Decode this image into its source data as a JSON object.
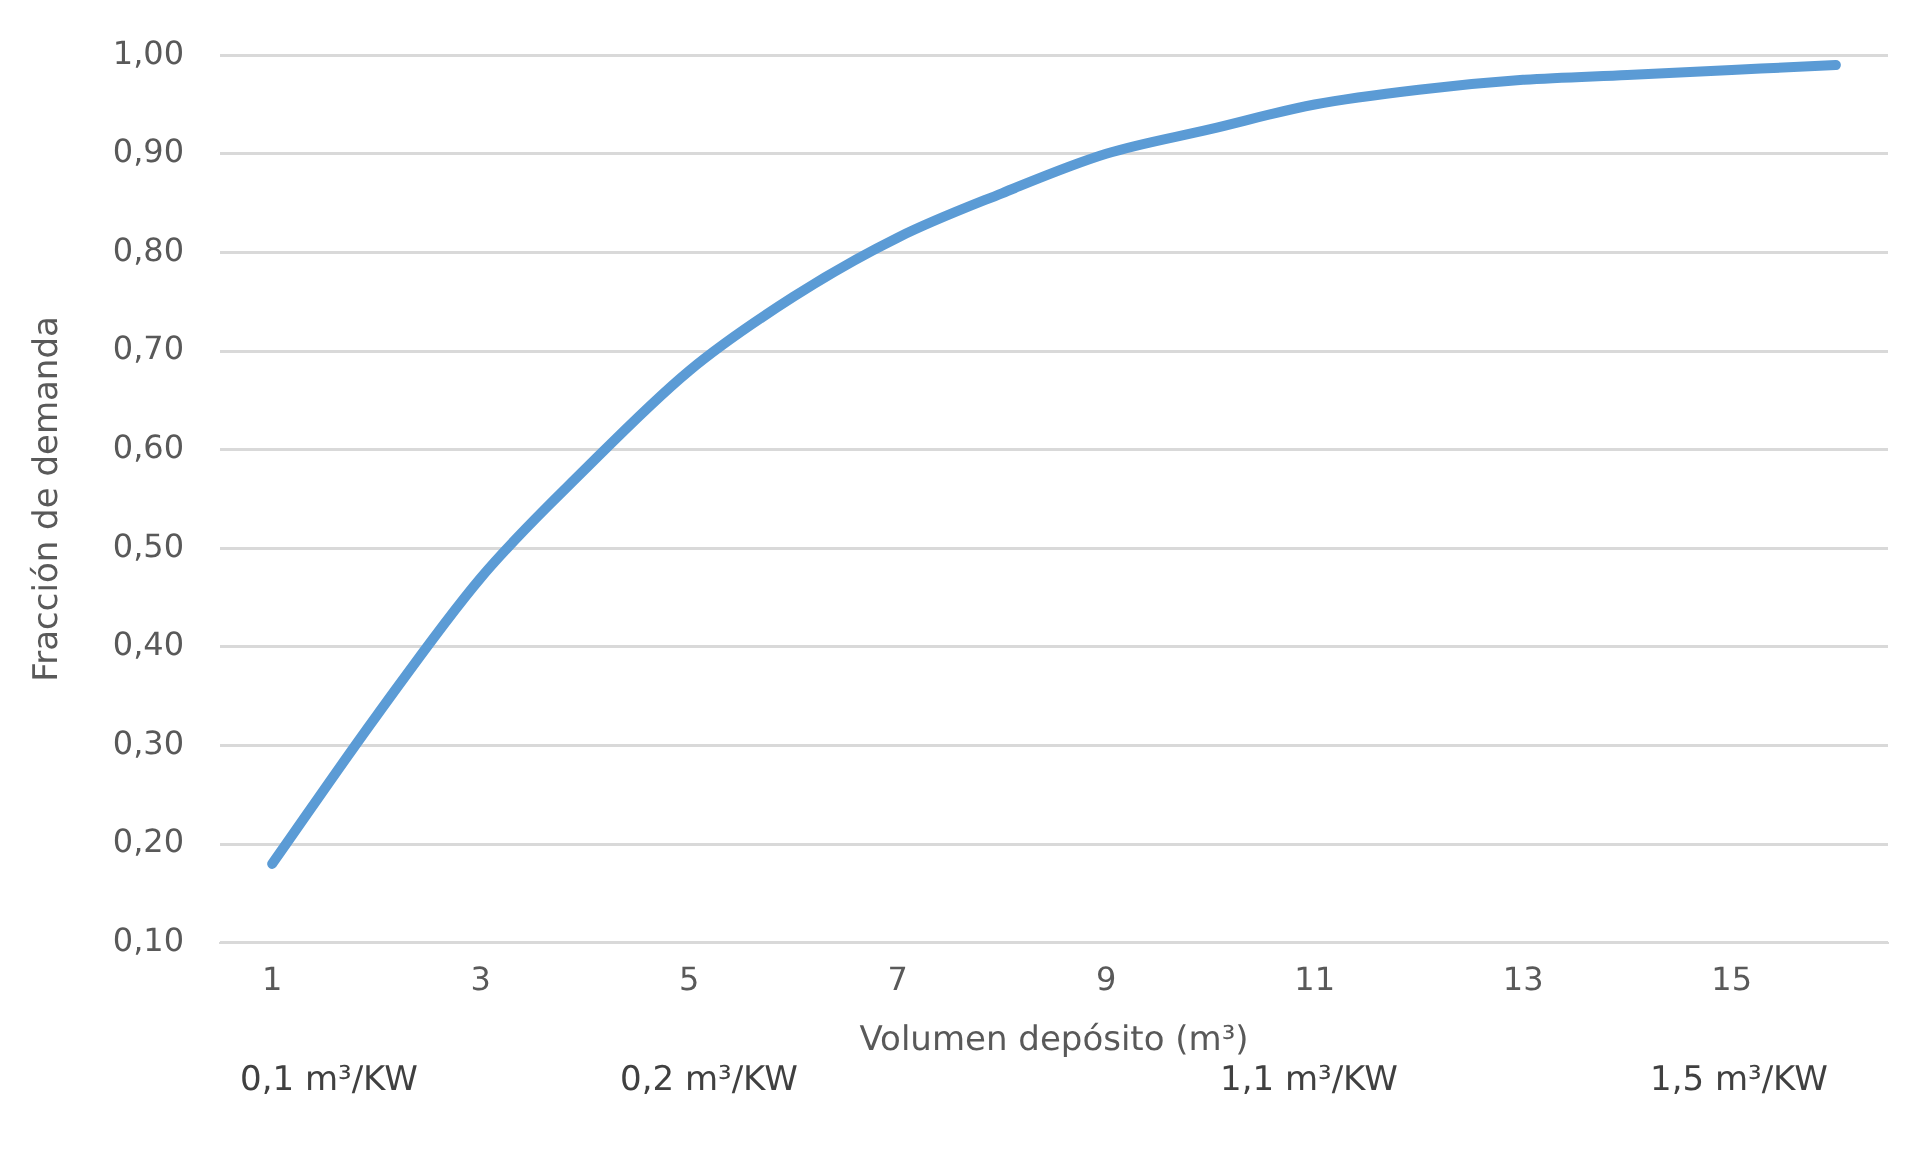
{
  "chart_data": {
    "type": "line",
    "xlabel": "Volumen depósito (m³)",
    "ylabel": "Fracción de demanda",
    "x": [
      1,
      2,
      3,
      4,
      5,
      6,
      7,
      8,
      9,
      10,
      11,
      12,
      13,
      14,
      15,
      16
    ],
    "xlim": [
      0.5,
      16.5
    ],
    "xticks": [
      1,
      3,
      5,
      7,
      9,
      11,
      13,
      15
    ],
    "series": [
      {
        "color": "#5b9bd5",
        "values": [
          0.18,
          0.33,
          0.47,
          0.58,
          0.68,
          0.755,
          0.815,
          0.86,
          0.9,
          0.925,
          0.95,
          0.965,
          0.975,
          0.98,
          0.985,
          0.99
        ]
      }
    ],
    "ylim": [
      0.1,
      1.0
    ],
    "yticks": [
      {
        "value": 0.1,
        "label": "0,10"
      },
      {
        "value": 0.2,
        "label": "0,20"
      },
      {
        "value": 0.3,
        "label": "0,30"
      },
      {
        "value": 0.4,
        "label": "0,40"
      },
      {
        "value": 0.5,
        "label": "0,50"
      },
      {
        "value": 0.6,
        "label": "0,60"
      },
      {
        "value": 0.7,
        "label": "0,70"
      },
      {
        "value": 0.8,
        "label": "0,80"
      },
      {
        "value": 0.9,
        "label": "0,90"
      },
      {
        "value": 1.0,
        "label": "1,00"
      }
    ],
    "grid": "y",
    "legend": false,
    "marker": "none",
    "line_style": "solid",
    "annotations": [
      "0,1 m³/KW",
      "0,2 m³/KW",
      "1,1 m³/KW",
      "1,5 m³/KW"
    ]
  }
}
